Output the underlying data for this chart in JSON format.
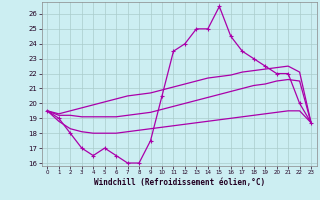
{
  "xlabel": "Windchill (Refroidissement éolien,°C)",
  "background_color": "#cceef2",
  "line_color": "#aa00aa",
  "grid_color": "#aacccc",
  "x_hours": [
    0,
    1,
    2,
    3,
    4,
    5,
    6,
    7,
    8,
    9,
    10,
    11,
    12,
    13,
    14,
    15,
    16,
    17,
    18,
    19,
    20,
    21,
    22,
    23
  ],
  "temp_line": [
    19.5,
    19.0,
    18.0,
    17.0,
    16.5,
    17.0,
    16.5,
    16.0,
    16.0,
    17.5,
    20.5,
    23.5,
    24.0,
    25.0,
    25.0,
    26.5,
    24.5,
    23.5,
    23.0,
    22.5,
    22.0,
    22.0,
    20.0,
    18.7
  ],
  "smooth_upper": [
    19.5,
    19.3,
    19.5,
    19.7,
    19.9,
    20.1,
    20.3,
    20.5,
    20.6,
    20.7,
    20.9,
    21.1,
    21.3,
    21.5,
    21.7,
    21.8,
    21.9,
    22.1,
    22.2,
    22.3,
    22.4,
    22.5,
    22.1,
    18.7
  ],
  "smooth_middle": [
    19.5,
    19.2,
    19.2,
    19.1,
    19.1,
    19.1,
    19.1,
    19.2,
    19.3,
    19.4,
    19.6,
    19.8,
    20.0,
    20.2,
    20.4,
    20.6,
    20.8,
    21.0,
    21.2,
    21.3,
    21.5,
    21.6,
    21.5,
    18.7
  ],
  "smooth_lower": [
    19.5,
    18.8,
    18.3,
    18.1,
    18.0,
    18.0,
    18.0,
    18.1,
    18.2,
    18.3,
    18.4,
    18.5,
    18.6,
    18.7,
    18.8,
    18.9,
    19.0,
    19.1,
    19.2,
    19.3,
    19.4,
    19.5,
    19.5,
    18.7
  ],
  "ylim": [
    15.8,
    26.8
  ],
  "yticks": [
    16,
    17,
    18,
    19,
    20,
    21,
    22,
    23,
    24,
    25,
    26
  ],
  "xlim": [
    -0.5,
    23.5
  ]
}
